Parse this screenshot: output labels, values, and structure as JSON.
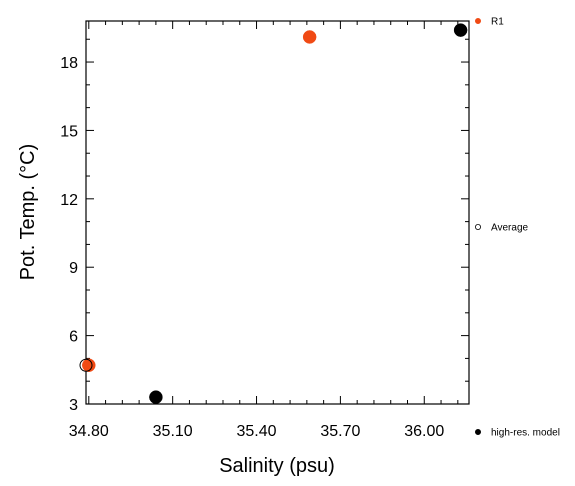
{
  "chart_data": {
    "type": "scatter",
    "xlabel": "Salinity (psu)",
    "ylabel": "Pot. Temp. (°C)",
    "xlim": [
      34.79,
      36.16
    ],
    "ylim": [
      3,
      19.8
    ],
    "x_ticks": [
      34.8,
      35.1,
      35.4,
      35.7,
      36.0
    ],
    "x_tick_labels": [
      "34.80",
      "35.10",
      "35.40",
      "35.70",
      "36.00"
    ],
    "y_ticks": [
      3,
      6,
      9,
      12,
      15,
      18
    ],
    "y_tick_labels": [
      "3",
      "6",
      "9",
      "12",
      "15",
      "18"
    ],
    "grid": false,
    "series": [
      {
        "name": "R1",
        "color": "#f04a14",
        "marker": "filled-circle",
        "points": [
          {
            "x": 34.8,
            "y": 4.7
          },
          {
            "x": 35.59,
            "y": 19.1
          }
        ]
      },
      {
        "name": "Average",
        "color": "#000000",
        "marker": "open-circle",
        "points": [
          {
            "x": 34.79,
            "y": 4.7
          }
        ]
      },
      {
        "name": "high-res. model",
        "color": "#000000",
        "marker": "filled-circle",
        "points": [
          {
            "x": 35.04,
            "y": 3.3
          },
          {
            "x": 36.13,
            "y": 19.4
          }
        ]
      }
    ],
    "legend_placement": "right"
  }
}
